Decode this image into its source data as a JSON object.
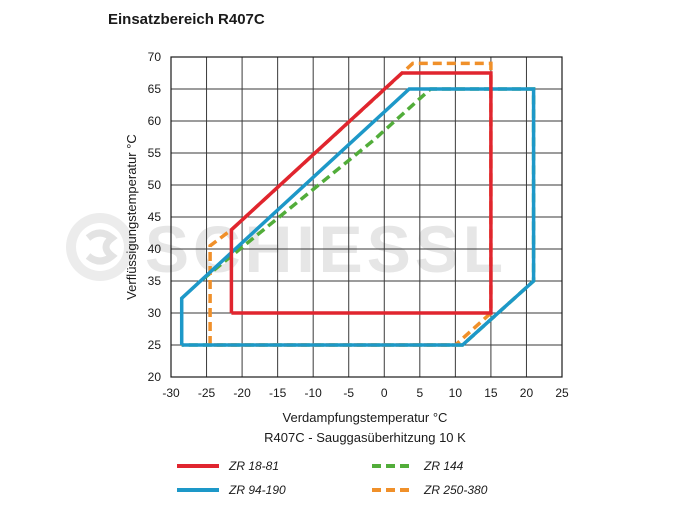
{
  "chart_data": {
    "type": "line",
    "title": "Einsatzbereich R407C",
    "xlabel": "Verdampfungstemperatur °C",
    "xlabel2": "R407C - Sauggasüberhitzung 10 K",
    "ylabel": "Verflüssigungstemperatur °C",
    "xlim": [
      -30,
      25
    ],
    "ylim": [
      20,
      70
    ],
    "xticks": [
      -30,
      -25,
      -20,
      -15,
      -10,
      -5,
      0,
      5,
      10,
      15,
      20,
      25
    ],
    "yticks": [
      20,
      25,
      30,
      35,
      40,
      45,
      50,
      55,
      60,
      65,
      70
    ],
    "xtick_labels": [
      "-30",
      "-25",
      "-20",
      "-15",
      "-10",
      "-5",
      "0",
      "5",
      "10",
      "15",
      "20",
      "25"
    ],
    "ytick_labels": [
      "20",
      "25",
      "30",
      "35",
      "40",
      "45",
      "50",
      "55",
      "60",
      "65",
      "70"
    ],
    "grid": true,
    "legend_position": "bottom",
    "watermark": "SCHIESSL",
    "series": [
      {
        "name": "ZR 18-81",
        "color": "#e0252f",
        "dash": "solid",
        "points": [
          [
            -21.5,
            30
          ],
          [
            -21.5,
            43
          ],
          [
            2.5,
            67.5
          ],
          [
            15,
            67.5
          ],
          [
            15,
            30
          ],
          [
            -21.5,
            30
          ]
        ]
      },
      {
        "name": "ZR 94-190",
        "color": "#1d98c8",
        "dash": "solid",
        "points": [
          [
            -28.5,
            25
          ],
          [
            -28.5,
            32.3
          ],
          [
            3.5,
            65
          ],
          [
            21,
            65
          ],
          [
            21,
            35
          ],
          [
            11,
            25
          ],
          [
            -28.5,
            25
          ]
        ]
      },
      {
        "name": "ZR 144",
        "color": "#52ad3a",
        "dash": "dashed",
        "points": [
          [
            -25.5,
            35.3
          ],
          [
            -1.5,
            57
          ],
          [
            6.5,
            65
          ],
          [
            21,
            65
          ],
          [
            21,
            35
          ],
          [
            11,
            25
          ],
          [
            -28.5,
            25
          ]
        ]
      },
      {
        "name": "ZR 250-380",
        "color": "#f0902a",
        "dash": "dashed",
        "points": [
          [
            -24.5,
            25
          ],
          [
            -24.5,
            40.5
          ],
          [
            -21.5,
            43
          ],
          [
            4,
            69
          ],
          [
            15,
            69
          ],
          [
            15,
            30
          ],
          [
            10,
            25
          ],
          [
            -24.5,
            25
          ]
        ]
      }
    ]
  }
}
